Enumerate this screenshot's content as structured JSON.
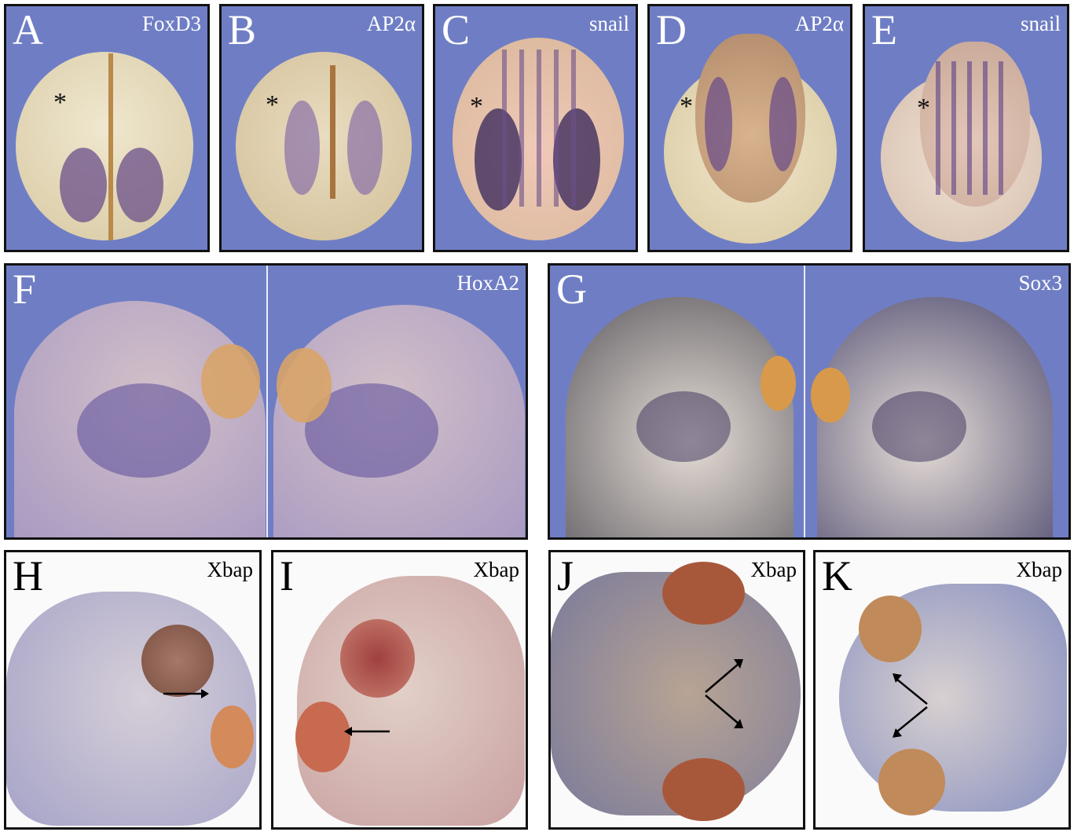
{
  "panels": [
    {
      "letter": "A",
      "gene": "FoxD3"
    },
    {
      "letter": "B",
      "gene": "AP2α"
    },
    {
      "letter": "C",
      "gene": "snail"
    },
    {
      "letter": "D",
      "gene": "AP2α"
    },
    {
      "letter": "E",
      "gene": "snail"
    },
    {
      "letter": "F",
      "gene": "HoxA2"
    },
    {
      "letter": "G",
      "gene": "Sox3"
    },
    {
      "letter": "H",
      "gene": "Xbap"
    },
    {
      "letter": "I",
      "gene": "Xbap"
    },
    {
      "letter": "J",
      "gene": "Xbap"
    },
    {
      "letter": "K",
      "gene": "Xbap"
    }
  ],
  "asterisk": "*",
  "colors": {
    "background_blue": "#6f7ec4",
    "embryo": "#e6dcc0",
    "stain_purple": "#5a3f86",
    "stain_brown": "#9a5a2c"
  }
}
